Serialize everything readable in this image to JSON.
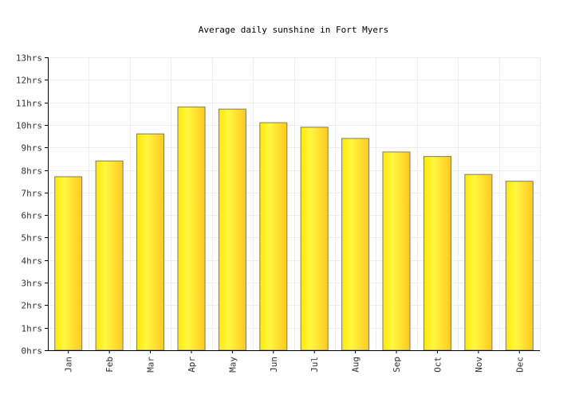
{
  "chart_data": {
    "type": "bar",
    "title": "Average daily sunshine in Fort Myers",
    "xlabel": "",
    "ylabel": "",
    "categories": [
      "Jan",
      "Feb",
      "Mar",
      "Apr",
      "May",
      "Jun",
      "Jul",
      "Aug",
      "Sep",
      "Oct",
      "Nov",
      "Dec"
    ],
    "values": [
      7.7,
      8.4,
      9.6,
      10.8,
      10.7,
      10.1,
      9.9,
      9.4,
      8.8,
      8.6,
      7.8,
      7.5
    ],
    "y_ticks": [
      "0hrs",
      "1hrs",
      "2hrs",
      "3hrs",
      "4hrs",
      "5hrs",
      "6hrs",
      "7hrs",
      "8hrs",
      "9hrs",
      "10hrs",
      "11hrs",
      "12hrs",
      "13hrs"
    ],
    "ylim": [
      0,
      13
    ],
    "grid": true,
    "legend": "none",
    "colors": {
      "bar_start": "#ffe900",
      "bar_mid": "#fff741",
      "bar_end": "#ffc91f",
      "bar_stroke": "#7a7a7a",
      "grid": "#eeeeee",
      "axis": "#000000"
    }
  }
}
